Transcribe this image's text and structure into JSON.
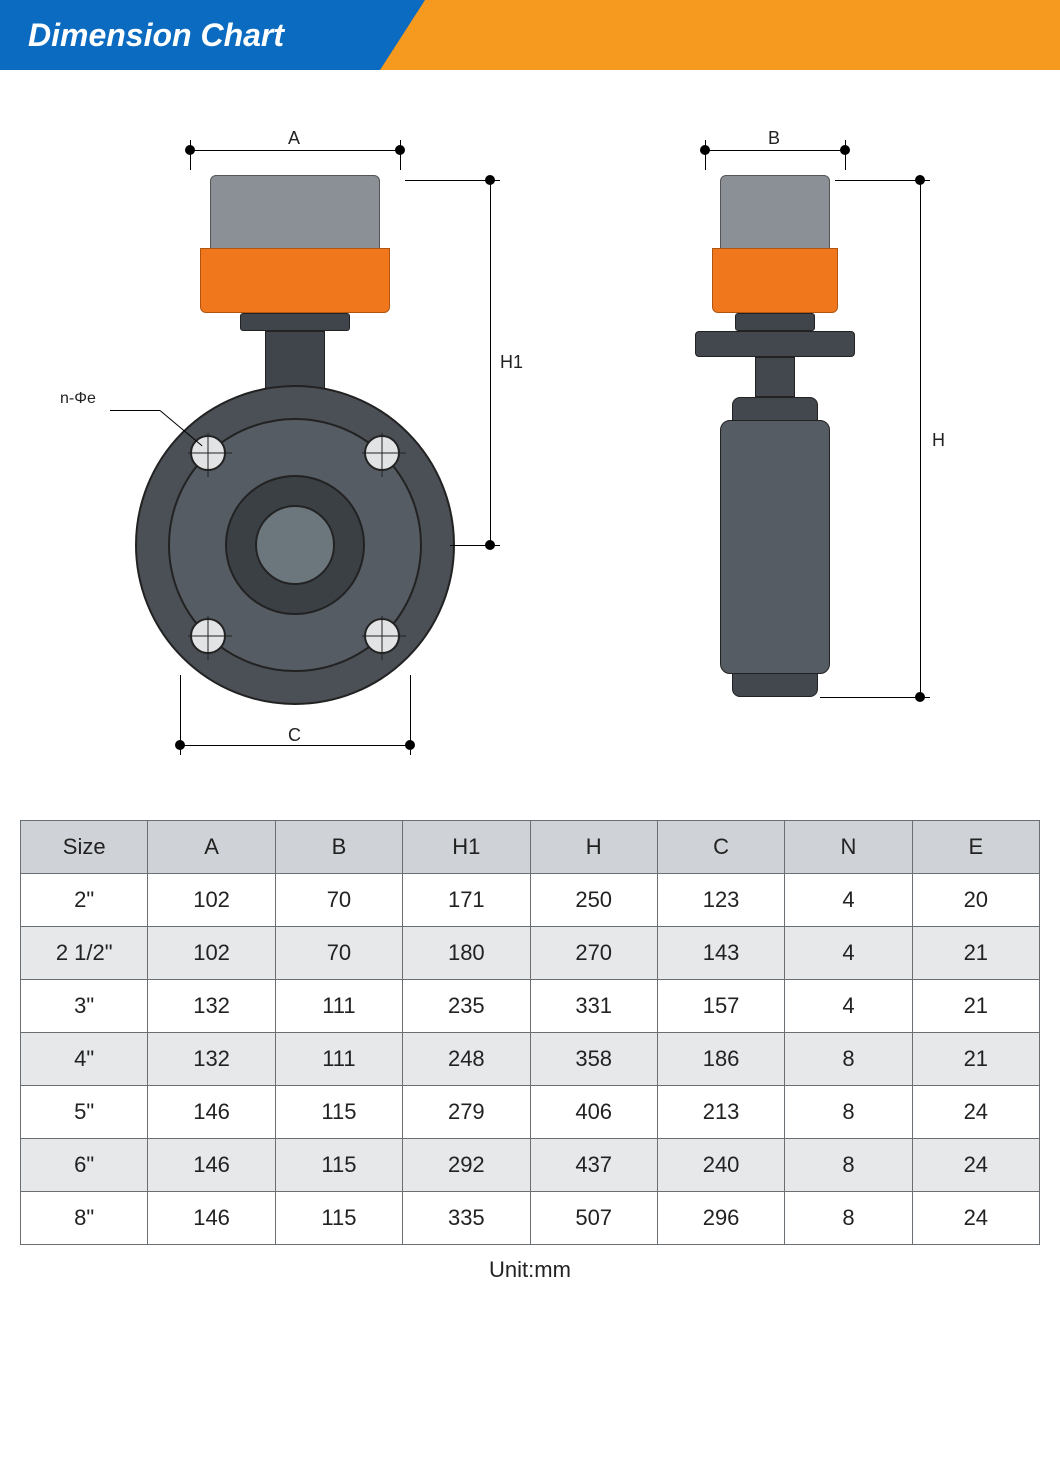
{
  "header": {
    "title": "Dimension Chart",
    "banner_blue_color": "#0a6bc1",
    "banner_orange_color": "#f59a1e",
    "title_color": "#ffffff",
    "title_fontsize": 32
  },
  "diagram": {
    "label_A": "A",
    "label_B": "B",
    "label_H1": "H1",
    "label_H": "H",
    "label_C": "C",
    "label_nphi": "n-Φe",
    "actuator_top_color": "#8b9096",
    "actuator_bot_color": "#f0771b",
    "valve_body_color": "#4b5056",
    "valve_dark_color": "#3f454b",
    "line_color": "#000000",
    "label_fontsize": 18
  },
  "table": {
    "columns": [
      "Size",
      "A",
      "B",
      "H1",
      "H",
      "C",
      "N",
      "E"
    ],
    "rows": [
      [
        "2\"",
        "102",
        "70",
        "171",
        "250",
        "123",
        "4",
        "20"
      ],
      [
        "2 1/2\"",
        "102",
        "70",
        "180",
        "270",
        "143",
        "4",
        "21"
      ],
      [
        "3\"",
        "132",
        "111",
        "235",
        "331",
        "157",
        "4",
        "21"
      ],
      [
        "4\"",
        "132",
        "111",
        "248",
        "358",
        "186",
        "8",
        "21"
      ],
      [
        "5\"",
        "146",
        "115",
        "279",
        "406",
        "213",
        "8",
        "24"
      ],
      [
        "6\"",
        "146",
        "115",
        "292",
        "437",
        "240",
        "8",
        "24"
      ],
      [
        "8\"",
        "146",
        "115",
        "335",
        "507",
        "296",
        "8",
        "24"
      ]
    ],
    "header_bg": "#cfd2d6",
    "alt_row_bg": "#e7e8ea",
    "border_color": "#6a6f73",
    "cell_fontsize": 22,
    "text_color": "#222222"
  },
  "footer": {
    "unit_label": "Unit:mm",
    "fontsize": 22
  }
}
